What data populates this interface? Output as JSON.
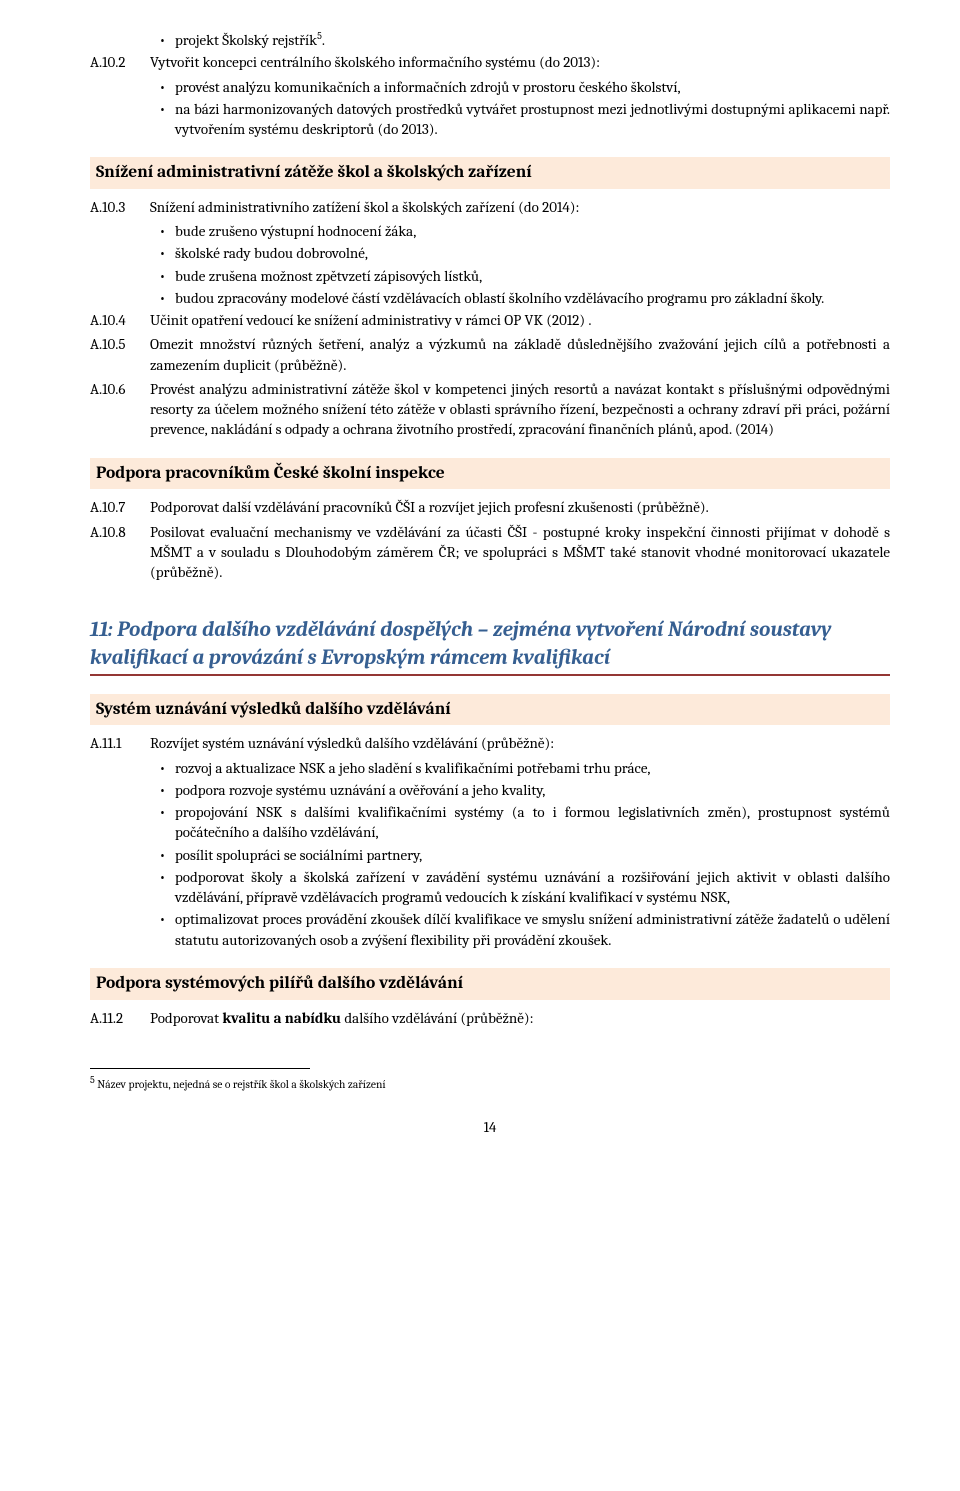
{
  "colors": {
    "heading_bg": "#fdeada",
    "chapter_color": "#365f91",
    "chapter_underline": "#943634",
    "text": "#000000",
    "background": "#ffffff"
  },
  "typography": {
    "body_font": "Cambria, Georgia, serif",
    "body_size_pt": 11,
    "heading_size_pt": 13,
    "chapter_size_pt": 16,
    "footnote_size_pt": 9
  },
  "top_bullet": "projekt Školský rejstřík",
  "top_sup": "5",
  "top_sup_dot": ".",
  "a10_2": {
    "num": "A.10.2",
    "lead": "Vytvořit koncepci centrálního školského informačního systému (do 2013):",
    "bullets": [
      "provést analýzu komunikačních a informačních zdrojů v prostoru českého školství,",
      "na bázi harmonizovaných datových prostředků vytvářet prostupnost mezi jednotlivými dostupnými aplikacemi např. vytvořením systému deskriptorů (do 2013)."
    ]
  },
  "sec1": {
    "title": "Snížení administrativní zátěže škol a školských zařízení",
    "a10_3": {
      "num": "A.10.3",
      "lead": "Snížení administrativního zatížení škol a školských zařízení (do 2014):",
      "bullets": [
        "bude zrušeno výstupní hodnocení žáka,",
        "školské rady budou dobrovolné,",
        "bude zrušena možnost zpětvzetí zápisových lístků,",
        "budou zpracovány modelové částí vzdělávacích oblastí školního vzdělávacího programu pro základní školy."
      ]
    },
    "a10_4": {
      "num": "A.10.4",
      "text": "Učinit opatření vedoucí ke snížení administrativy v rámci OP VK (2012) ."
    },
    "a10_5": {
      "num": "A.10.5",
      "text": "Omezit množství různých šetření, analýz a výzkumů na základě důslednějšího zvažování jejich cílů a potřebnosti a zamezením duplicit (průběžně)."
    },
    "a10_6": {
      "num": "A.10.6",
      "text": "Provést analýzu administrativní zátěže škol v kompetenci jiných resortů a navázat kontakt s příslušnými odpovědnými resorty za účelem možného snížení této zátěže v oblasti správního řízení, bezpečnosti a ochrany zdraví při práci, požární prevence, nakládání s odpady a ochrana životního prostředí, zpracování finančních plánů, apod. (2014)"
    }
  },
  "sec2": {
    "title": "Podpora pracovníkům České školní inspekce",
    "a10_7": {
      "num": "A.10.7",
      "text": "Podporovat další vzdělávání pracovníků ČŠI a rozvíjet jejich profesní zkušenosti (průběžně)."
    },
    "a10_8": {
      "num": "A.10.8",
      "text": "Posilovat evaluační mechanismy ve vzdělávání za účasti ČŠI - postupné kroky inspekční činnosti přijímat v dohodě s MŠMT a v souladu s Dlouhodobým záměrem ČR; ve spolupráci s MŠMT také stanovit vhodné monitorovací ukazatele (průběžně)."
    }
  },
  "chapter11": "11: Podpora dalšího vzdělávání dospělých – zejména vytvoření Národní soustavy kvalifikací a provázání s Evropským rámcem kvalifikací",
  "sec3": {
    "title": "Systém uznávání výsledků dalšího vzdělávání",
    "a11_1": {
      "num": "A.11.1",
      "lead": "Rozvíjet systém uznávání výsledků dalšího vzdělávání (průběžně):",
      "bullets": [
        "rozvoj a aktualizace NSK a jeho sladění s kvalifikačními potřebami trhu práce,",
        "podpora rozvoje systému uznávání a ověřování a jeho kvality,",
        "propojování NSK s dalšími kvalifikačními systémy (a to i formou legislativních změn), prostupnost systémů počátečního a dalšího vzdělávání,",
        "posílit spolupráci se sociálními partnery,",
        "podporovat školy a školská zařízení v zavádění systému uznávání a rozšiřování jejich aktivit v oblasti dalšího vzdělávání, přípravě vzdělávacích programů vedoucích k získání kvalifikací v systému NSK,",
        "optimalizovat proces provádění zkoušek dílčí kvalifikace ve smyslu snížení administrativní zátěže žadatelů o udělení statutu autorizovaných osob a zvýšení flexibility při provádění zkoušek."
      ]
    }
  },
  "sec4": {
    "title": "Podpora systémových pilířů dalšího vzdělávání",
    "a11_2": {
      "num": "A.11.2",
      "pre": "Podporovat ",
      "bold": "kvalitu a nabídku",
      "post": " dalšího vzdělávání (průběžně):"
    }
  },
  "footnote": {
    "sup": "5",
    "text": " Název projektu, nejedná se o rejstřík škol a školských zařízení"
  },
  "page_number": "14"
}
